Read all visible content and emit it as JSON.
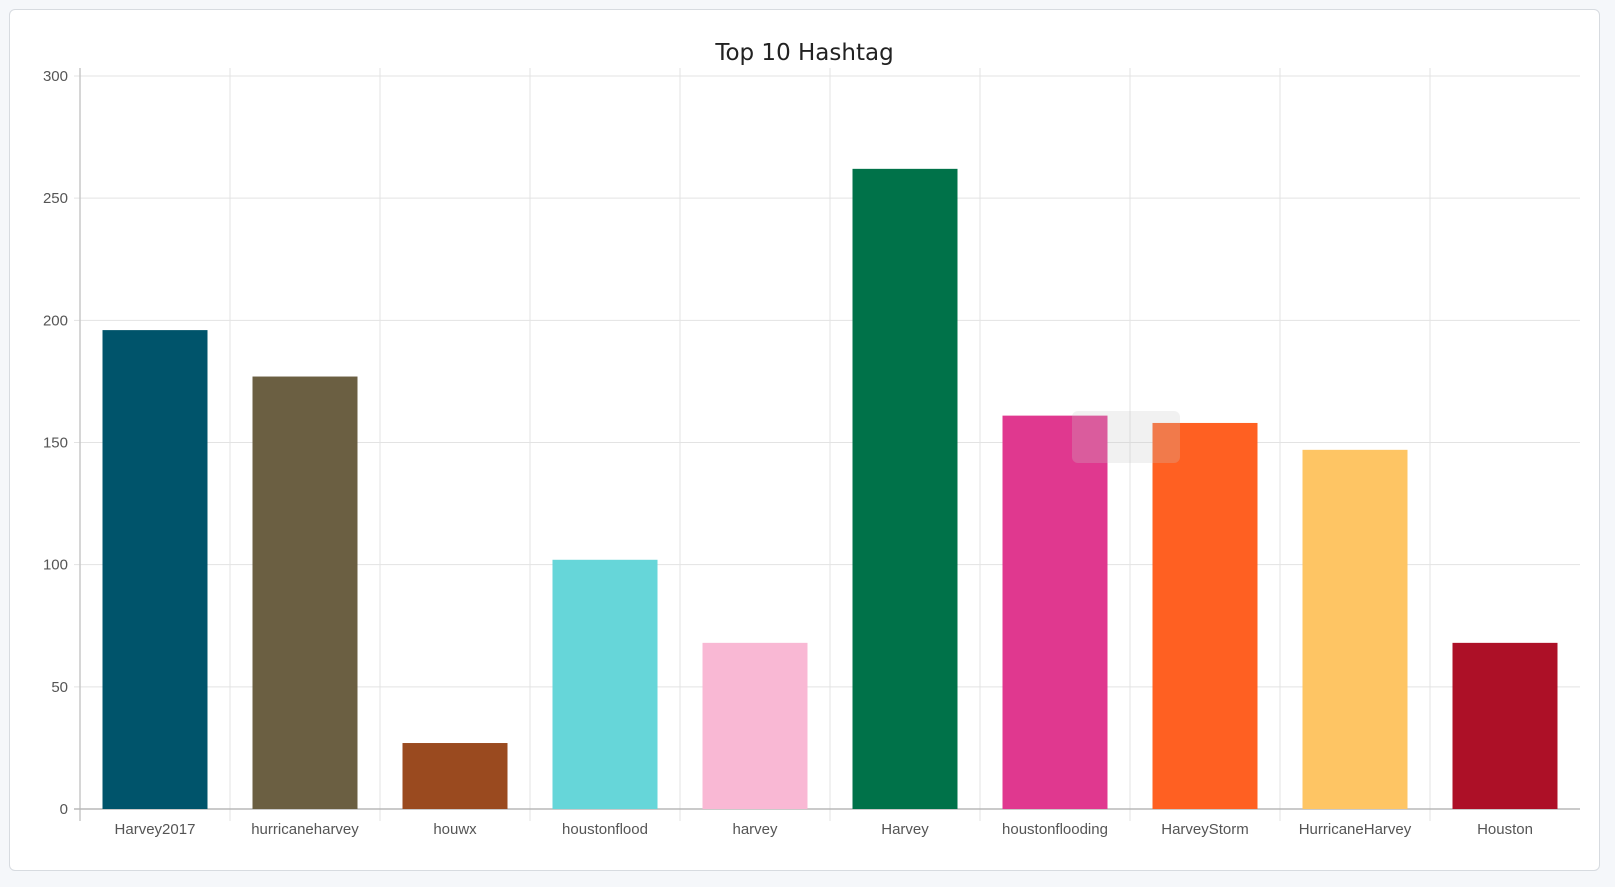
{
  "chart_data": {
    "type": "bar",
    "title": "Top 10 Hashtag",
    "xlabel": "",
    "ylabel": "",
    "categories": [
      "Harvey2017",
      "hurricaneharvey",
      "houwx",
      "houstonflood",
      "harvey",
      "Harvey",
      "houstonflooding",
      "HarveyStorm",
      "HurricaneHarvey",
      "Houston"
    ],
    "values": [
      196,
      177,
      27,
      102,
      68,
      262,
      161,
      158,
      147,
      68
    ],
    "colors": [
      "#00546b",
      "#6b5f42",
      "#9a4a1f",
      "#66d6d9",
      "#f9b8d4",
      "#007249",
      "#e0388f",
      "#ff6022",
      "#fec564",
      "#ad1027"
    ],
    "ylim": [
      0,
      300
    ],
    "yticks": [
      0,
      50,
      100,
      150,
      200,
      250,
      300
    ],
    "grid": true,
    "legend": "none"
  }
}
